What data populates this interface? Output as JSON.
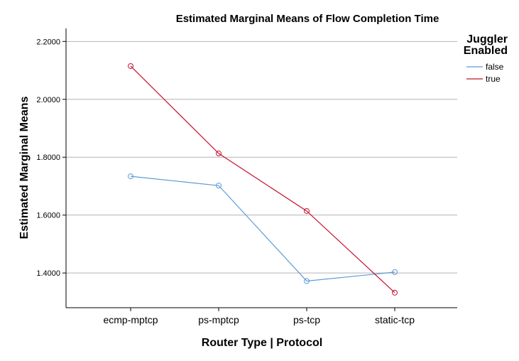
{
  "chart_data": {
    "type": "line",
    "title": "Estimated Marginal Means of Flow Completion Time",
    "xlabel": "Router Type | Protocol",
    "ylabel": "Estimated Marginal Means",
    "categories": [
      "ecmp-mptcp",
      "ps-mptcp",
      "ps-tcp",
      "static-tcp"
    ],
    "ylim": [
      1.28,
      2.245
    ],
    "yticks": [
      1.4,
      1.6,
      1.8,
      2.0,
      2.2
    ],
    "ytick_labels": [
      "1.4000",
      "1.6000",
      "1.8000",
      "2.0000",
      "2.2000"
    ],
    "grid": "horizontal",
    "legend": {
      "title_lines": [
        "Juggler",
        "Enabled"
      ],
      "position": "top-right"
    },
    "series": [
      {
        "name": "false",
        "color": "#5b9bd5",
        "values": [
          1.734,
          1.702,
          1.372,
          1.403
        ]
      },
      {
        "name": "true",
        "color": "#c8102e",
        "values": [
          2.115,
          1.813,
          1.614,
          1.332
        ]
      }
    ]
  }
}
